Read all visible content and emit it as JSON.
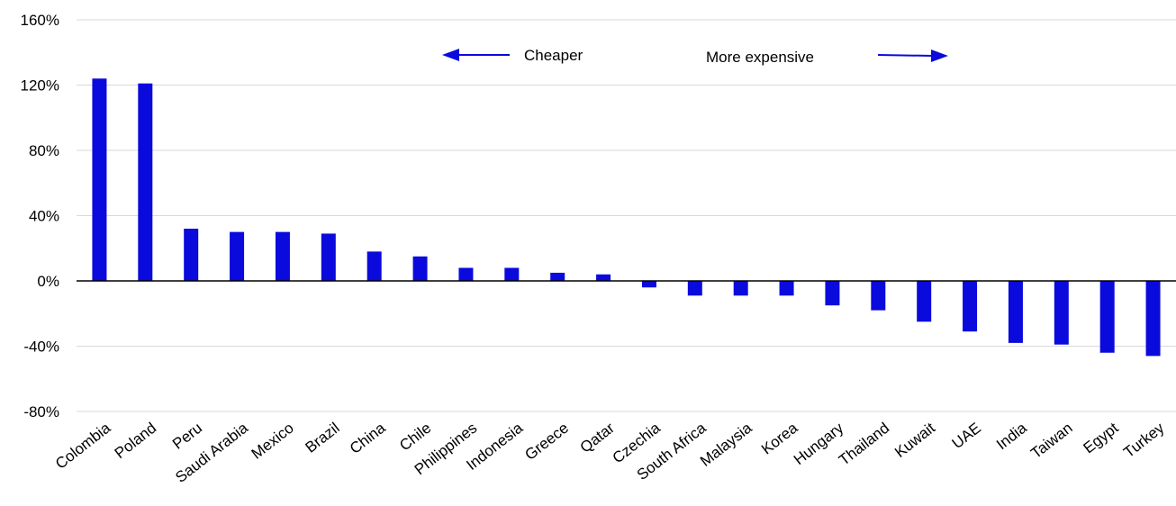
{
  "chart_data": {
    "type": "bar",
    "title": "",
    "xlabel": "",
    "ylabel": "",
    "categories": [
      "Colombia",
      "Poland",
      "Peru",
      "Saudi Arabia",
      "Mexico",
      "Brazil",
      "China",
      "Chile",
      "Philippines",
      "Indonesia",
      "Greece",
      "Qatar",
      "Czechia",
      "South Africa",
      "Malaysia",
      "Korea",
      "Hungary",
      "Thailand",
      "Kuwait",
      "UAE",
      "India",
      "Taiwan",
      "Egypt",
      "Turkey"
    ],
    "values": [
      124,
      121,
      32,
      30,
      30,
      29,
      18,
      15,
      8,
      8,
      5,
      4,
      -4,
      -9,
      -9,
      -9,
      -15,
      -18,
      -25,
      -31,
      -38,
      -39,
      -44,
      -46
    ],
    "ylim": [
      -80,
      160
    ],
    "yticks": [
      -80,
      -40,
      0,
      40,
      80,
      120,
      160
    ],
    "ytick_format": "percent",
    "grid": true,
    "bar_color": "#0A0ADC",
    "annotations": {
      "cheaper": "Cheaper",
      "more_expensive": "More expensive"
    }
  }
}
